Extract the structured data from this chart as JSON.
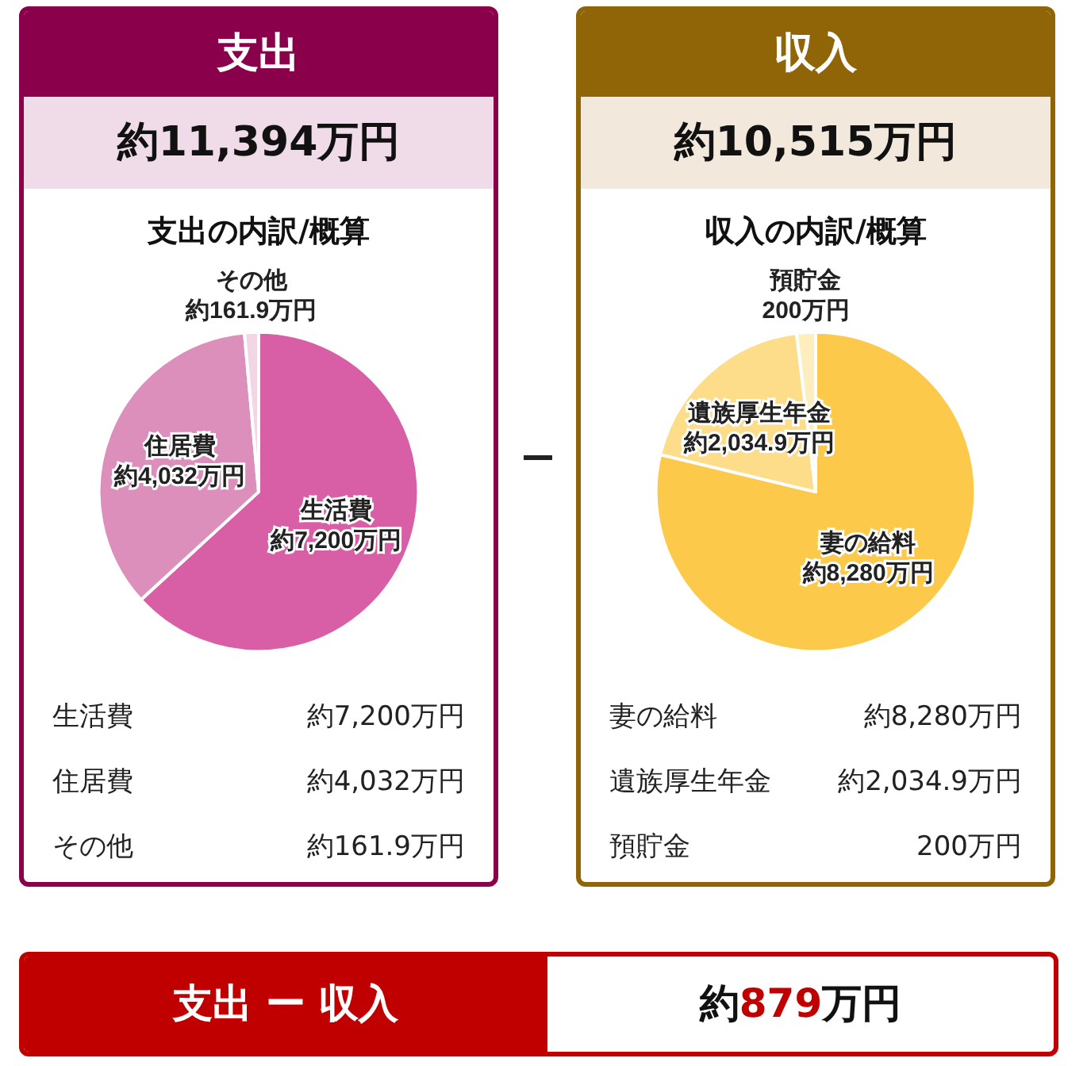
{
  "chart_data": [
    {
      "type": "pie",
      "title": "支出",
      "subtitle": "約11,394万円",
      "annotations": [
        "支出の内訳/概算"
      ],
      "categories": [
        "生活費",
        "住居費",
        "その他"
      ],
      "values": [
        7200,
        4032,
        161.9
      ],
      "colors": [
        "#d85ea6",
        "#dc8fbb",
        "#f2d6e6"
      ],
      "value_labels": [
        "約7,200万円",
        "約4,032万円",
        "約161.9万円"
      ]
    },
    {
      "type": "pie",
      "title": "収入",
      "subtitle": "約10,515万円",
      "annotations": [
        "収入の内訳/概算"
      ],
      "categories": [
        "妻の給料",
        "遺族厚生年金",
        "預貯金"
      ],
      "values": [
        8280,
        2034.9,
        200
      ],
      "colors": [
        "#fcc94a",
        "#fddc8a",
        "#feeebd"
      ],
      "value_labels": [
        "約8,280万円",
        "約2,034.9万円",
        "200万円"
      ]
    },
    {
      "type": "other",
      "title": "支出 ー 収入",
      "annotations": [
        "約879万円"
      ]
    }
  ]
}
